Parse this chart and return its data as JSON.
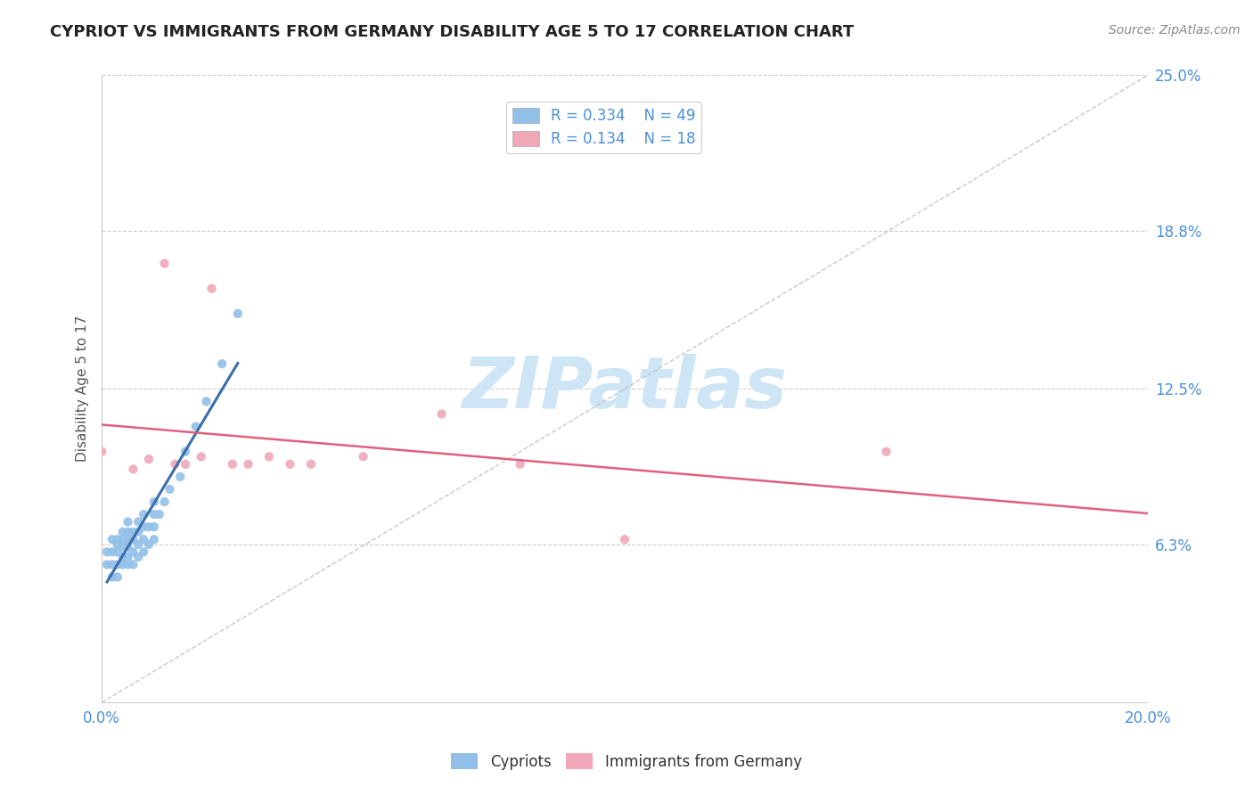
{
  "title": "CYPRIOT VS IMMIGRANTS FROM GERMANY DISABILITY AGE 5 TO 17 CORRELATION CHART",
  "source_text": "Source: ZipAtlas.com",
  "ylabel": "Disability Age 5 to 17",
  "xlim": [
    0.0,
    0.2
  ],
  "ylim": [
    0.0,
    0.25
  ],
  "yticks": [
    0.0,
    0.063,
    0.125,
    0.188,
    0.25
  ],
  "ytick_labels": [
    "",
    "6.3%",
    "12.5%",
    "18.8%",
    "25.0%"
  ],
  "xticks": [
    0.0,
    0.04,
    0.08,
    0.12,
    0.16,
    0.2
  ],
  "xtick_labels": [
    "0.0%",
    "",
    "",
    "",
    "",
    "20.0%"
  ],
  "legend_R1": "R = 0.334",
  "legend_N1": "N = 49",
  "legend_R2": "R = 0.134",
  "legend_N2": "N = 18",
  "color_blue": "#92bfe8",
  "color_blue_line": "#3a6eaa",
  "color_pink": "#f0a8b8",
  "color_pink_line": "#e06080",
  "color_blue_text": "#4a90d9",
  "watermark": "ZIPatlas",
  "watermark_color": "#cde5f5",
  "grid_color": "#cccccc",
  "background_color": "#ffffff",
  "cypriot_x": [
    0.001,
    0.001,
    0.002,
    0.002,
    0.002,
    0.002,
    0.003,
    0.003,
    0.003,
    0.003,
    0.003,
    0.004,
    0.004,
    0.004,
    0.004,
    0.004,
    0.005,
    0.005,
    0.005,
    0.005,
    0.005,
    0.005,
    0.006,
    0.006,
    0.006,
    0.006,
    0.007,
    0.007,
    0.007,
    0.007,
    0.008,
    0.008,
    0.008,
    0.008,
    0.009,
    0.009,
    0.01,
    0.01,
    0.01,
    0.01,
    0.011,
    0.012,
    0.013,
    0.015,
    0.016,
    0.018,
    0.02,
    0.023,
    0.026
  ],
  "cypriot_y": [
    0.055,
    0.06,
    0.05,
    0.055,
    0.06,
    0.065,
    0.05,
    0.055,
    0.06,
    0.063,
    0.065,
    0.055,
    0.058,
    0.062,
    0.065,
    0.068,
    0.055,
    0.058,
    0.062,
    0.065,
    0.068,
    0.072,
    0.055,
    0.06,
    0.065,
    0.068,
    0.058,
    0.063,
    0.068,
    0.072,
    0.06,
    0.065,
    0.07,
    0.075,
    0.063,
    0.07,
    0.065,
    0.07,
    0.075,
    0.08,
    0.075,
    0.08,
    0.085,
    0.09,
    0.1,
    0.11,
    0.12,
    0.135,
    0.155
  ],
  "germany_x": [
    0.0,
    0.006,
    0.009,
    0.012,
    0.014,
    0.016,
    0.019,
    0.021,
    0.025,
    0.028,
    0.032,
    0.036,
    0.04,
    0.05,
    0.065,
    0.08,
    0.1,
    0.15
  ],
  "germany_y": [
    0.1,
    0.093,
    0.097,
    0.175,
    0.095,
    0.095,
    0.098,
    0.165,
    0.095,
    0.095,
    0.098,
    0.095,
    0.095,
    0.098,
    0.115,
    0.095,
    0.065,
    0.1
  ]
}
